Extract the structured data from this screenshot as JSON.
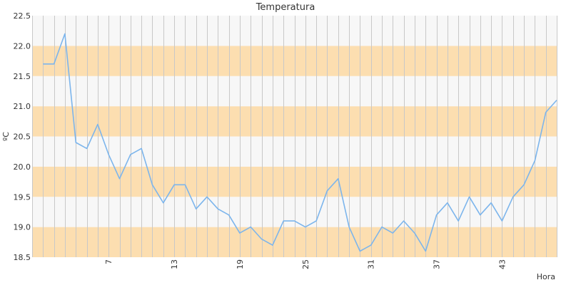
{
  "chart_data": {
    "type": "line",
    "title": "Temperatura",
    "xlabel": "Hora",
    "ylabel": "ºC",
    "xlim": [
      0,
      48
    ],
    "ylim": [
      18.5,
      22.5
    ],
    "y_ticks": [
      "18.5",
      "19.0",
      "19.5",
      "20.0",
      "20.5",
      "21.0",
      "21.5",
      "22.0",
      "22.5"
    ],
    "x_ticks": [
      "7",
      "13",
      "19",
      "25",
      "31",
      "37",
      "43"
    ],
    "grid": "vertical lines each hour; horizontal bands alternating every 0.5 ºC",
    "legend": "none",
    "series": [
      {
        "color": "#7cb5ec",
        "x": [
          1,
          2,
          3,
          4,
          5,
          6,
          7,
          8,
          9,
          10,
          11,
          12,
          13,
          14,
          15,
          16,
          17,
          18,
          19,
          20,
          21,
          22,
          23,
          24,
          25,
          26,
          27,
          28,
          29,
          30,
          31,
          32,
          33,
          34,
          35,
          36,
          37,
          38,
          39,
          40,
          41,
          42,
          43,
          44,
          45,
          46,
          47,
          48
        ],
        "values": [
          21.7,
          21.7,
          22.2,
          20.4,
          20.3,
          20.7,
          20.2,
          19.8,
          20.2,
          20.3,
          19.7,
          19.4,
          19.7,
          19.7,
          19.3,
          19.5,
          19.3,
          19.2,
          18.9,
          19.0,
          18.8,
          18.7,
          19.1,
          19.1,
          19.0,
          19.1,
          19.6,
          19.8,
          19.0,
          18.6,
          18.7,
          19.0,
          18.9,
          19.1,
          18.9,
          18.6,
          19.2,
          19.4,
          19.1,
          19.5,
          19.2,
          19.4,
          19.1,
          19.5,
          19.7,
          20.1,
          20.9,
          21.1
        ]
      }
    ],
    "colors": {
      "band_a": "#fcdeb0",
      "band_b": "#f7f7f7",
      "grid": "#c8c8c8",
      "line": "#7cb5ec",
      "text": "#333333"
    }
  }
}
